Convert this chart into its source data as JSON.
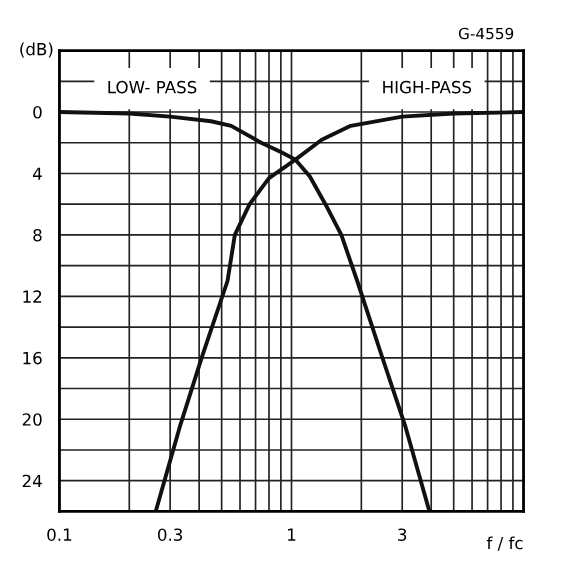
{
  "chart_data": {
    "type": "line",
    "annotations": [
      "G-4559"
    ],
    "xlabel": "f / fc",
    "ylabel": "(dB)",
    "log": "x",
    "xlim": [
      0.1,
      10
    ],
    "xticks": [
      0.1,
      {
        "value": 0.2,
        "label": null
      },
      0.3,
      {
        "value": 0.4,
        "label": null
      },
      {
        "value": 0.5,
        "label": null
      },
      {
        "value": 0.6,
        "label": null
      },
      {
        "value": 0.7,
        "label": null
      },
      {
        "value": 0.8,
        "label": null
      },
      {
        "value": 0.9,
        "label": null
      },
      1,
      {
        "value": 2,
        "label": null
      },
      3,
      {
        "value": 4,
        "label": null
      },
      {
        "value": 5,
        "label": null
      },
      {
        "value": 6,
        "label": null
      },
      {
        "value": 7,
        "label": null
      },
      {
        "value": 8,
        "label": null
      },
      {
        "value": 9,
        "label": null
      },
      {
        "value": 10,
        "label": null
      }
    ],
    "ylim": [
      26,
      -4
    ],
    "yticks": [
      {
        "value": -4,
        "label": null
      },
      {
        "value": -2,
        "label": null
      },
      0,
      {
        "value": 2,
        "label": null
      },
      4,
      {
        "value": 6,
        "label": null
      },
      8,
      {
        "value": 10,
        "label": null
      },
      12,
      {
        "value": 14,
        "label": null
      },
      16,
      {
        "value": 18,
        "label": null
      },
      20,
      {
        "value": 22,
        "label": null
      },
      24,
      {
        "value": 26,
        "label": null
      }
    ],
    "grid": true,
    "marker": "none",
    "line_style": "solid",
    "series": [
      {
        "name": "LOW- PASS",
        "color": "#111111",
        "x": [
          0.1,
          0.2,
          0.3,
          0.45,
          0.55,
          0.74,
          0.9,
          1.04,
          1.2,
          1.4,
          1.64,
          1.92,
          2.44,
          3.1,
          3.93
        ],
        "values": [
          0,
          0.1,
          0.3,
          0.6,
          0.9,
          2,
          2.6,
          3.1,
          4.2,
          6,
          8,
          11,
          15.8,
          20.5,
          26
        ]
      },
      {
        "name": "HIGH-PASS",
        "color": "#111111",
        "x": [
          0.26,
          0.33,
          0.41,
          0.53,
          0.57,
          0.66,
          0.8,
          1.04,
          1.35,
          1.8,
          3,
          5,
          10
        ],
        "values": [
          26,
          20.5,
          16,
          11,
          8,
          6,
          4.3,
          3.1,
          1.8,
          0.9,
          0.3,
          0.1,
          0
        ]
      }
    ]
  }
}
